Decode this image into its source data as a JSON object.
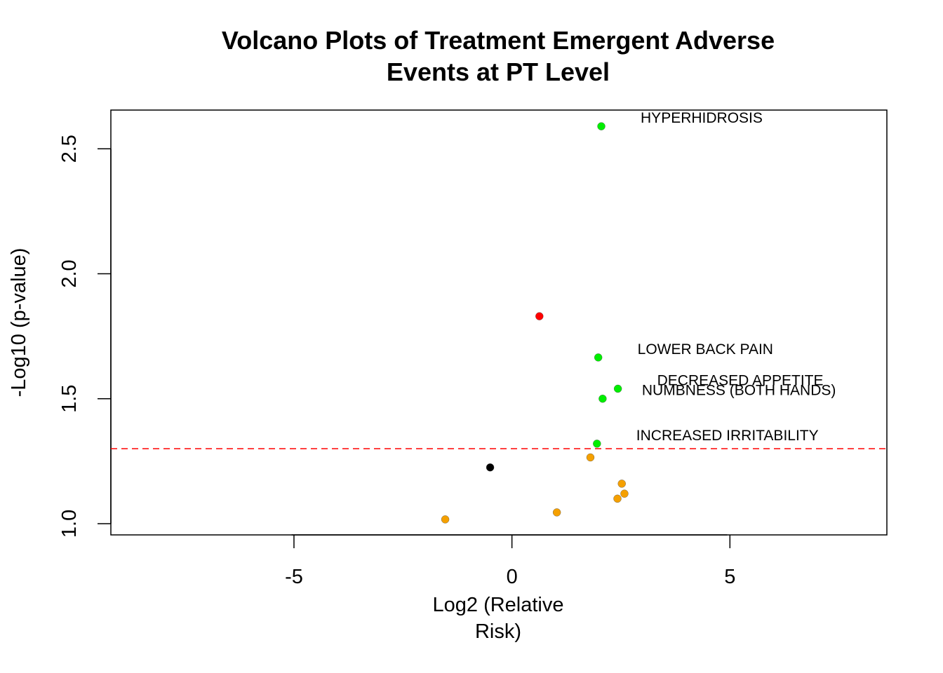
{
  "chart_data": {
    "type": "scatter",
    "title": [
      "Volcano Plots of Treatment Emergent Adverse",
      "Events at PT Level"
    ],
    "xlabel": [
      "Log2 (Relative",
      "Risk)"
    ],
    "ylabel": "-Log10 (p-value)",
    "xlim": [
      -9.2,
      8.6
    ],
    "ylim": [
      0.955,
      2.655
    ],
    "xticks": [
      -5,
      0,
      5
    ],
    "xtick_labels": [
      "-5",
      "0",
      "5"
    ],
    "yticks": [
      1.0,
      1.5,
      2.0,
      2.5
    ],
    "ytick_labels": [
      "1.0",
      "1.5",
      "2.0",
      "2.5"
    ],
    "grid": false,
    "threshold_line": {
      "y": 1.3,
      "color": "#ff0000",
      "style": "dashed"
    },
    "colors": {
      "green": "#00ee00",
      "red": "#ff0000",
      "black": "#000000",
      "orange": "#f5a000"
    },
    "points": [
      {
        "x": 2.05,
        "y": 2.59,
        "color": "green",
        "label": "HYPERHIDROSIS"
      },
      {
        "x": 0.63,
        "y": 1.83,
        "color": "red"
      },
      {
        "x": 1.98,
        "y": 1.665,
        "color": "green",
        "label": "LOWER BACK PAIN"
      },
      {
        "x": 2.43,
        "y": 1.54,
        "color": "green",
        "label": "DECREASED APPETITE"
      },
      {
        "x": 2.08,
        "y": 1.5,
        "color": "green",
        "label": "NUMBNESS (BOTH HANDS)"
      },
      {
        "x": 1.95,
        "y": 1.32,
        "color": "green",
        "label": "INCREASED IRRITABILITY"
      },
      {
        "x": 1.8,
        "y": 1.265,
        "color": "orange"
      },
      {
        "x": -0.5,
        "y": 1.225,
        "color": "black"
      },
      {
        "x": 2.52,
        "y": 1.16,
        "color": "orange"
      },
      {
        "x": 2.58,
        "y": 1.12,
        "color": "orange"
      },
      {
        "x": 2.42,
        "y": 1.1,
        "color": "orange"
      },
      {
        "x": 1.03,
        "y": 1.045,
        "color": "orange"
      },
      {
        "x": -1.53,
        "y": 1.017,
        "color": "orange"
      }
    ]
  }
}
